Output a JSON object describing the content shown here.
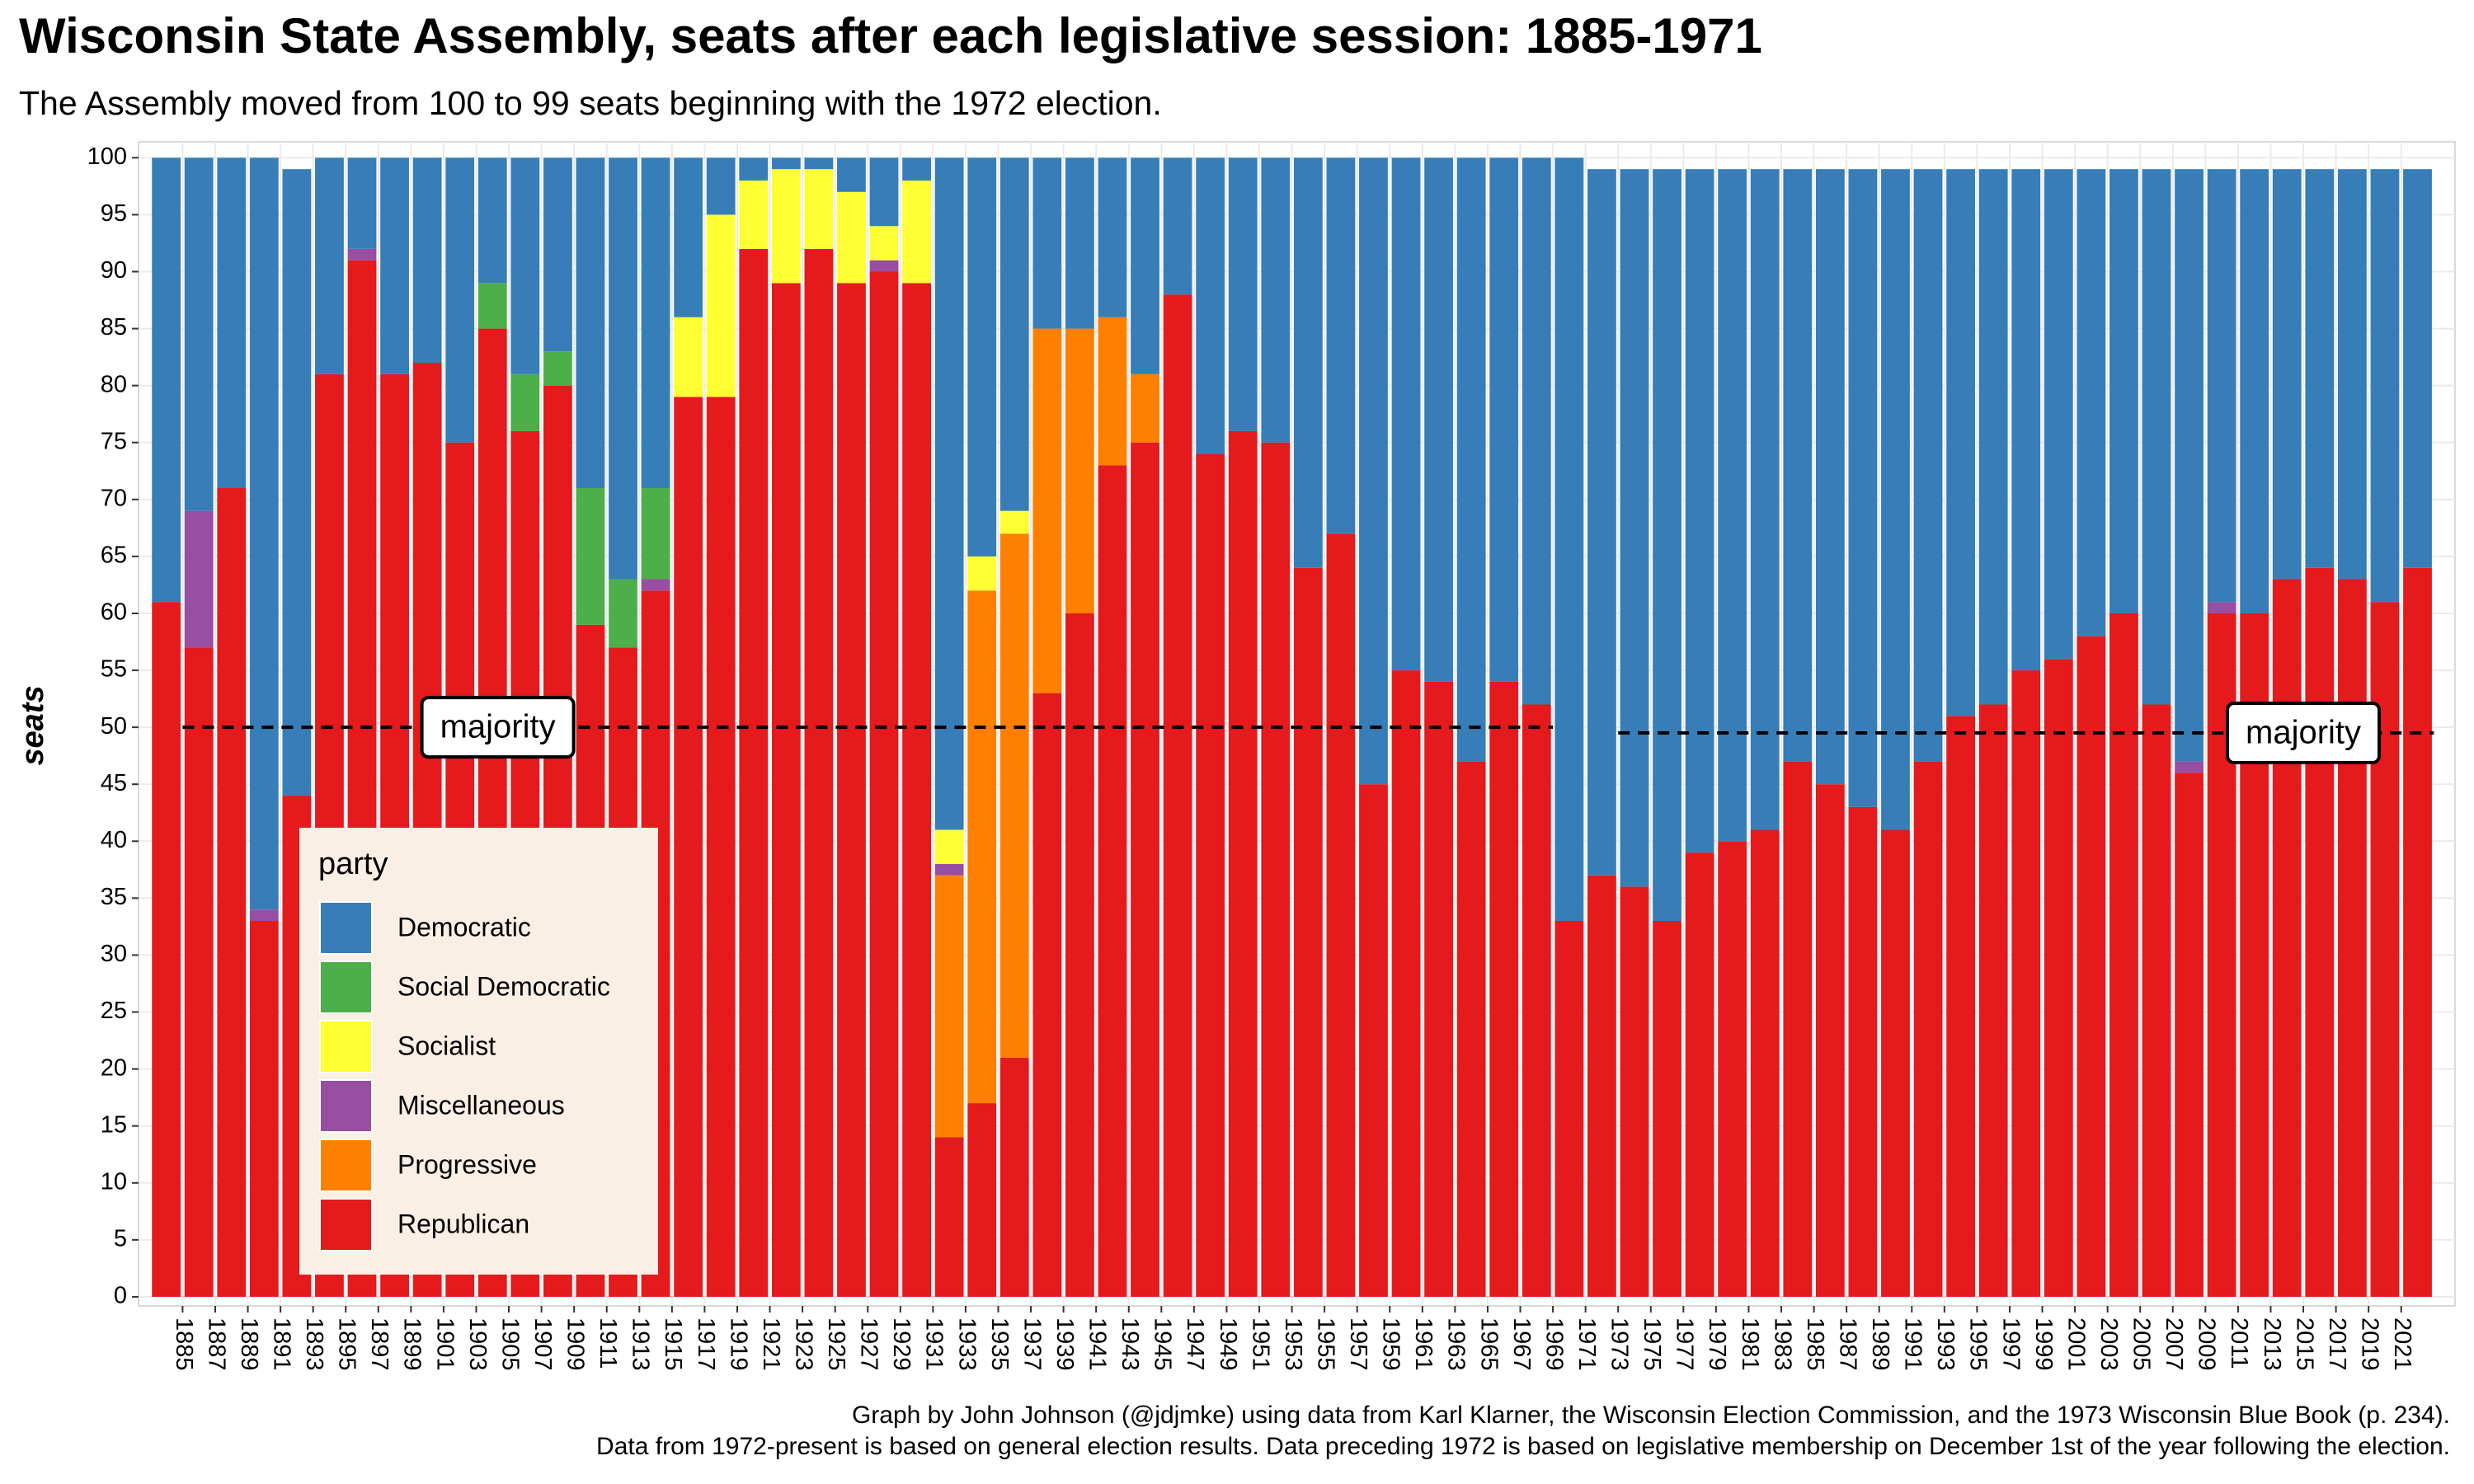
{
  "chart_data": {
    "type": "stacked-bar",
    "title": "Wisconsin State Assembly, seats after each legislative session: 1885-1971",
    "subtitle": "The Assembly moved from 100 to 99 seats beginning with the 1972 election.",
    "y_label": "seats",
    "caption": [
      "Graph by John Johnson (@jdjmke) using data from Karl Klarner, the Wisconsin Election Commission, and the 1973 Wisconsin Blue Book (p. 234).",
      "Data from 1972-present is based on general election results. Data preceding 1972 is based on legislative membership on December 1st of the year following the election."
    ],
    "legend_title": "party",
    "legend": "bottom-left",
    "grid": true,
    "x": [
      1884,
      1886,
      1888,
      1890,
      1892,
      1894,
      1896,
      1898,
      1900,
      1902,
      1904,
      1906,
      1908,
      1910,
      1912,
      1914,
      1916,
      1918,
      1920,
      1922,
      1924,
      1926,
      1928,
      1930,
      1932,
      1934,
      1936,
      1938,
      1940,
      1942,
      1944,
      1946,
      1948,
      1950,
      1952,
      1954,
      1956,
      1958,
      1960,
      1962,
      1964,
      1966,
      1968,
      1970,
      1972,
      1974,
      1976,
      1978,
      1980,
      1982,
      1984,
      1986,
      1988,
      1990,
      1992,
      1994,
      1996,
      1998,
      2000,
      2002,
      2004,
      2006,
      2008,
      2010,
      2012,
      2014,
      2016,
      2018,
      2020,
      2022
    ],
    "xlim": [
      1882.3,
      2024.3
    ],
    "xticks": [
      1885,
      1887,
      1889,
      1891,
      1893,
      1895,
      1897,
      1899,
      1901,
      1903,
      1905,
      1907,
      1909,
      1911,
      1913,
      1915,
      1917,
      1919,
      1921,
      1923,
      1925,
      1927,
      1929,
      1931,
      1933,
      1935,
      1937,
      1939,
      1941,
      1943,
      1945,
      1947,
      1949,
      1951,
      1953,
      1955,
      1957,
      1959,
      1961,
      1963,
      1965,
      1967,
      1969,
      1971,
      1973,
      1975,
      1977,
      1979,
      1981,
      1983,
      1985,
      1987,
      1989,
      1991,
      1993,
      1995,
      1997,
      1999,
      2001,
      2003,
      2005,
      2007,
      2009,
      2011,
      2013,
      2015,
      2017,
      2019,
      2021
    ],
    "ylim": [
      -0.8,
      101.4
    ],
    "yticks": [
      0,
      5,
      10,
      15,
      20,
      25,
      30,
      35,
      40,
      45,
      50,
      55,
      60,
      65,
      70,
      75,
      80,
      85,
      90,
      95,
      100
    ],
    "series": [
      {
        "name": "Republican",
        "color": "#e41a1c",
        "values": [
          61,
          57,
          71,
          33,
          44,
          81,
          91,
          81,
          82,
          75,
          85,
          76,
          80,
          59,
          57,
          62,
          79,
          79,
          92,
          89,
          92,
          89,
          90,
          89,
          14,
          17,
          21,
          53,
          60,
          73,
          75,
          88,
          74,
          76,
          75,
          64,
          67,
          45,
          55,
          54,
          47,
          54,
          52,
          33,
          37,
          36,
          33,
          39,
          40,
          41,
          47,
          45,
          43,
          41,
          47,
          51,
          52,
          55,
          56,
          58,
          60,
          52,
          46,
          60,
          60,
          63,
          64,
          63,
          61,
          64
        ]
      },
      {
        "name": "Progressive",
        "color": "#ff7f00",
        "values": [
          0,
          0,
          0,
          0,
          0,
          0,
          0,
          0,
          0,
          0,
          0,
          0,
          0,
          0,
          0,
          0,
          0,
          0,
          0,
          0,
          0,
          0,
          0,
          0,
          23,
          45,
          46,
          32,
          25,
          13,
          6,
          0,
          0,
          0,
          0,
          0,
          0,
          0,
          0,
          0,
          0,
          0,
          0,
          0,
          0,
          0,
          0,
          0,
          0,
          0,
          0,
          0,
          0,
          0,
          0,
          0,
          0,
          0,
          0,
          0,
          0,
          0,
          0,
          0,
          0,
          0,
          0,
          0,
          0,
          0
        ]
      },
      {
        "name": "Miscellaneous",
        "color": "#984ea3",
        "values": [
          0,
          12,
          0,
          1,
          0,
          0,
          1,
          0,
          0,
          0,
          0,
          0,
          0,
          0,
          0,
          1,
          0,
          0,
          0,
          0,
          0,
          0,
          1,
          0,
          1,
          0,
          0,
          0,
          0,
          0,
          0,
          0,
          0,
          0,
          0,
          0,
          0,
          0,
          0,
          0,
          0,
          0,
          0,
          0,
          0,
          0,
          0,
          0,
          0,
          0,
          0,
          0,
          0,
          0,
          0,
          0,
          0,
          0,
          0,
          0,
          0,
          0,
          1,
          1,
          0,
          0,
          0,
          0,
          0,
          0
        ]
      },
      {
        "name": "Socialist",
        "color": "#ffff33",
        "values": [
          0,
          0,
          0,
          0,
          0,
          0,
          0,
          0,
          0,
          0,
          0,
          0,
          0,
          0,
          0,
          0,
          7,
          16,
          6,
          10,
          7,
          8,
          3,
          9,
          3,
          3,
          2,
          0,
          0,
          0,
          0,
          0,
          0,
          0,
          0,
          0,
          0,
          0,
          0,
          0,
          0,
          0,
          0,
          0,
          0,
          0,
          0,
          0,
          0,
          0,
          0,
          0,
          0,
          0,
          0,
          0,
          0,
          0,
          0,
          0,
          0,
          0,
          0,
          0,
          0,
          0,
          0,
          0,
          0,
          0
        ]
      },
      {
        "name": "Social Democratic",
        "color": "#4daf4a",
        "values": [
          0,
          0,
          0,
          0,
          0,
          0,
          0,
          0,
          0,
          0,
          4,
          5,
          3,
          12,
          6,
          8,
          0,
          0,
          0,
          0,
          0,
          0,
          0,
          0,
          0,
          0,
          0,
          0,
          0,
          0,
          0,
          0,
          0,
          0,
          0,
          0,
          0,
          0,
          0,
          0,
          0,
          0,
          0,
          0,
          0,
          0,
          0,
          0,
          0,
          0,
          0,
          0,
          0,
          0,
          0,
          0,
          0,
          0,
          0,
          0,
          0,
          0,
          0,
          0,
          0,
          0,
          0,
          0,
          0,
          0
        ]
      },
      {
        "name": "Democratic",
        "color": "#377eb8",
        "values": [
          39,
          31,
          29,
          66,
          55,
          19,
          8,
          19,
          18,
          25,
          11,
          19,
          17,
          29,
          37,
          29,
          14,
          5,
          2,
          1,
          1,
          3,
          6,
          2,
          59,
          35,
          31,
          15,
          15,
          14,
          19,
          12,
          26,
          24,
          25,
          36,
          33,
          55,
          45,
          46,
          53,
          46,
          48,
          67,
          62,
          63,
          66,
          60,
          59,
          58,
          52,
          54,
          56,
          58,
          52,
          48,
          47,
          44,
          43,
          41,
          39,
          47,
          52,
          38,
          39,
          36,
          35,
          36,
          38,
          35
        ]
      }
    ],
    "annotations": [
      {
        "text": "majority",
        "y": 50,
        "x": [
          1885,
          1969
        ]
      },
      {
        "text": "majority",
        "y": 49.5,
        "x": [
          1973,
          2023
        ]
      }
    ]
  }
}
